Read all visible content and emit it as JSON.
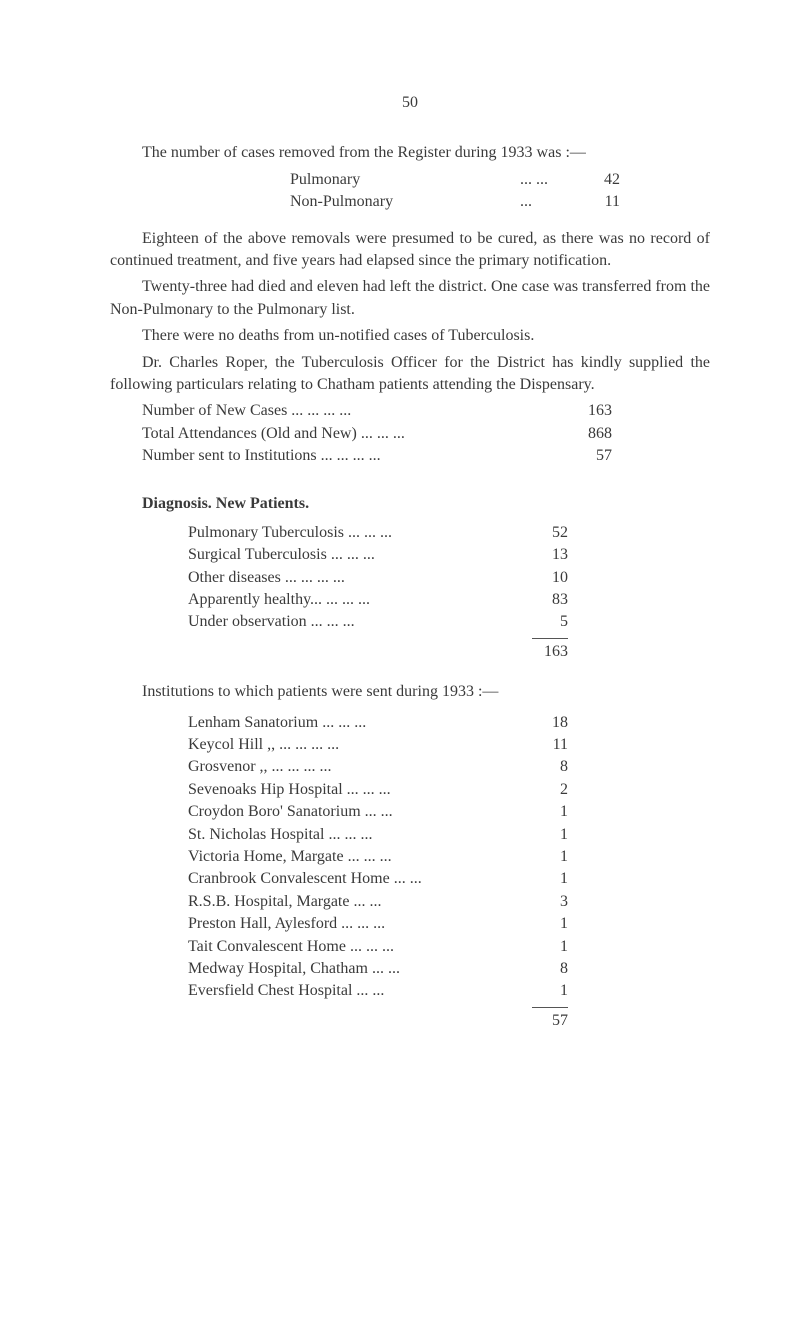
{
  "page_number": "50",
  "p1": "The number of cases removed from the Register during 1933 was :—",
  "pulmonary": {
    "label": "Pulmonary",
    "dots": "...      ...",
    "value": "42"
  },
  "nonpulmonary": {
    "label": "Non-Pulmonary",
    "dots": "...",
    "value": "11"
  },
  "p2": "Eighteen of the above removals were presumed to be cured, as there was no record of continued treatment, and five years had elapsed since the primary notification.",
  "p3": "Twenty-three had died and eleven had left the district.  One case was transferred from the Non-Pulmonary to the Pulmonary list.",
  "p4": "There were no deaths from un-notified cases of Tuberculosis.",
  "p5": "Dr. Charles Roper, the Tuberculosis Officer for the District has kindly supplied the following particulars relating to Chatham patients attending the Dispensary.",
  "stats": [
    {
      "label": "Number of New Cases          ...      ...      ...      ...",
      "value": "163"
    },
    {
      "label": "Total Attendances (Old and New)  ...      ...      ...",
      "value": "868"
    },
    {
      "label": "Number sent to Institutions ...      ...      ...      ...",
      "value": "57"
    }
  ],
  "diag_title": "Diagnosis.   New  Patients.",
  "diag": [
    {
      "label": "Pulmonary Tuberculosis   ...      ...      ...",
      "value": "52"
    },
    {
      "label": "Surgical Tuberculosis        ...      ...      ...",
      "value": "13"
    },
    {
      "label": "Other diseases         ...      ...      ...      ...",
      "value": "10"
    },
    {
      "label": "Apparently healthy...      ...      ...      ...",
      "value": "83"
    },
    {
      "label": "Under observation            ...      ...      ...",
      "value": "5"
    }
  ],
  "diag_total": "163",
  "inst_intro": "Institutions to which patients were sent during 1933 :—",
  "inst": [
    {
      "label": "Lenham Sanatorium          ...      ...      ...",
      "value": "18"
    },
    {
      "label": "Keycol Hill    ,,        ...      ...      ...      ...",
      "value": "11"
    },
    {
      "label": "Grosvenor      ,,        ...      ...      ...      ...",
      "value": "8"
    },
    {
      "label": "Sevenoaks Hip Hospital   ...      ...      ...",
      "value": "2"
    },
    {
      "label": "Croydon Boro' Sanatorium        ...      ...",
      "value": "1"
    },
    {
      "label": "St. Nicholas Hospital        ...      ...      ...",
      "value": "1"
    },
    {
      "label": "Victoria Home, Margate   ...      ...      ...",
      "value": "1"
    },
    {
      "label": "Cranbrook Convalescent Home   ...      ...",
      "value": "1"
    },
    {
      "label": "R.S.B. Hospital, Margate          ...      ...",
      "value": "3"
    },
    {
      "label": "Preston Hall, Aylesford    ...      ...      ...",
      "value": "1"
    },
    {
      "label": "Tait Convalescent Home  ...      ...      ...",
      "value": "1"
    },
    {
      "label": "Medway Hospital, Chatham       ...      ...",
      "value": "8"
    },
    {
      "label": "Eversfield Chest Hospital          ...      ...",
      "value": "1"
    }
  ],
  "inst_total": "57"
}
